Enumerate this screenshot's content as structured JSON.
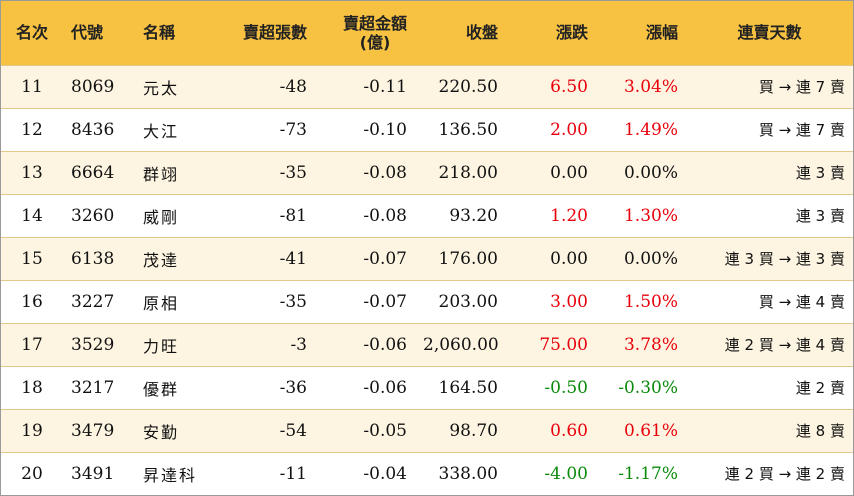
{
  "headers": {
    "rank": "名次",
    "code": "代號",
    "name": "名稱",
    "net_sell_lots": "賣超張數",
    "net_sell_amount_line1": "賣超金額",
    "net_sell_amount_line2": "(億)",
    "close": "收盤",
    "change": "漲跌",
    "change_pct": "漲幅",
    "streak": "連賣天數"
  },
  "colors": {
    "header_bg": "#f7c242",
    "row_alt_bg": "#fdf5e2",
    "up": "#e8000b",
    "down": "#0a8a0a"
  },
  "rows": [
    {
      "rank": "11",
      "code": "8069",
      "name": "元太",
      "lots": "-48",
      "amount": "-0.11",
      "close": "220.50",
      "change": "6.50",
      "pct": "3.04%",
      "streak": "買 → 連 7 賣",
      "dir": "up"
    },
    {
      "rank": "12",
      "code": "8436",
      "name": "大江",
      "lots": "-73",
      "amount": "-0.10",
      "close": "136.50",
      "change": "2.00",
      "pct": "1.49%",
      "streak": "買 → 連 7 賣",
      "dir": "up"
    },
    {
      "rank": "13",
      "code": "6664",
      "name": "群翊",
      "lots": "-35",
      "amount": "-0.08",
      "close": "218.00",
      "change": "0.00",
      "pct": "0.00%",
      "streak": "連 3 賣",
      "dir": "flat"
    },
    {
      "rank": "14",
      "code": "3260",
      "name": "威剛",
      "lots": "-81",
      "amount": "-0.08",
      "close": "93.20",
      "change": "1.20",
      "pct": "1.30%",
      "streak": "連 3 賣",
      "dir": "up"
    },
    {
      "rank": "15",
      "code": "6138",
      "name": "茂達",
      "lots": "-41",
      "amount": "-0.07",
      "close": "176.00",
      "change": "0.00",
      "pct": "0.00%",
      "streak": "連 3 買 → 連 3 賣",
      "dir": "flat"
    },
    {
      "rank": "16",
      "code": "3227",
      "name": "原相",
      "lots": "-35",
      "amount": "-0.07",
      "close": "203.00",
      "change": "3.00",
      "pct": "1.50%",
      "streak": "買 → 連 4 賣",
      "dir": "up"
    },
    {
      "rank": "17",
      "code": "3529",
      "name": "力旺",
      "lots": "-3",
      "amount": "-0.06",
      "close": "2,060.00",
      "change": "75.00",
      "pct": "3.78%",
      "streak": "連 2 買 → 連 4 賣",
      "dir": "up"
    },
    {
      "rank": "18",
      "code": "3217",
      "name": "優群",
      "lots": "-36",
      "amount": "-0.06",
      "close": "164.50",
      "change": "-0.50",
      "pct": "-0.30%",
      "streak": "連 2 賣",
      "dir": "down"
    },
    {
      "rank": "19",
      "code": "3479",
      "name": "安勤",
      "lots": "-54",
      "amount": "-0.05",
      "close": "98.70",
      "change": "0.60",
      "pct": "0.61%",
      "streak": "連 8 賣",
      "dir": "up"
    },
    {
      "rank": "20",
      "code": "3491",
      "name": "昇達科",
      "lots": "-11",
      "amount": "-0.04",
      "close": "338.00",
      "change": "-4.00",
      "pct": "-1.17%",
      "streak": "連 2 買 → 連 2 賣",
      "dir": "down"
    }
  ]
}
